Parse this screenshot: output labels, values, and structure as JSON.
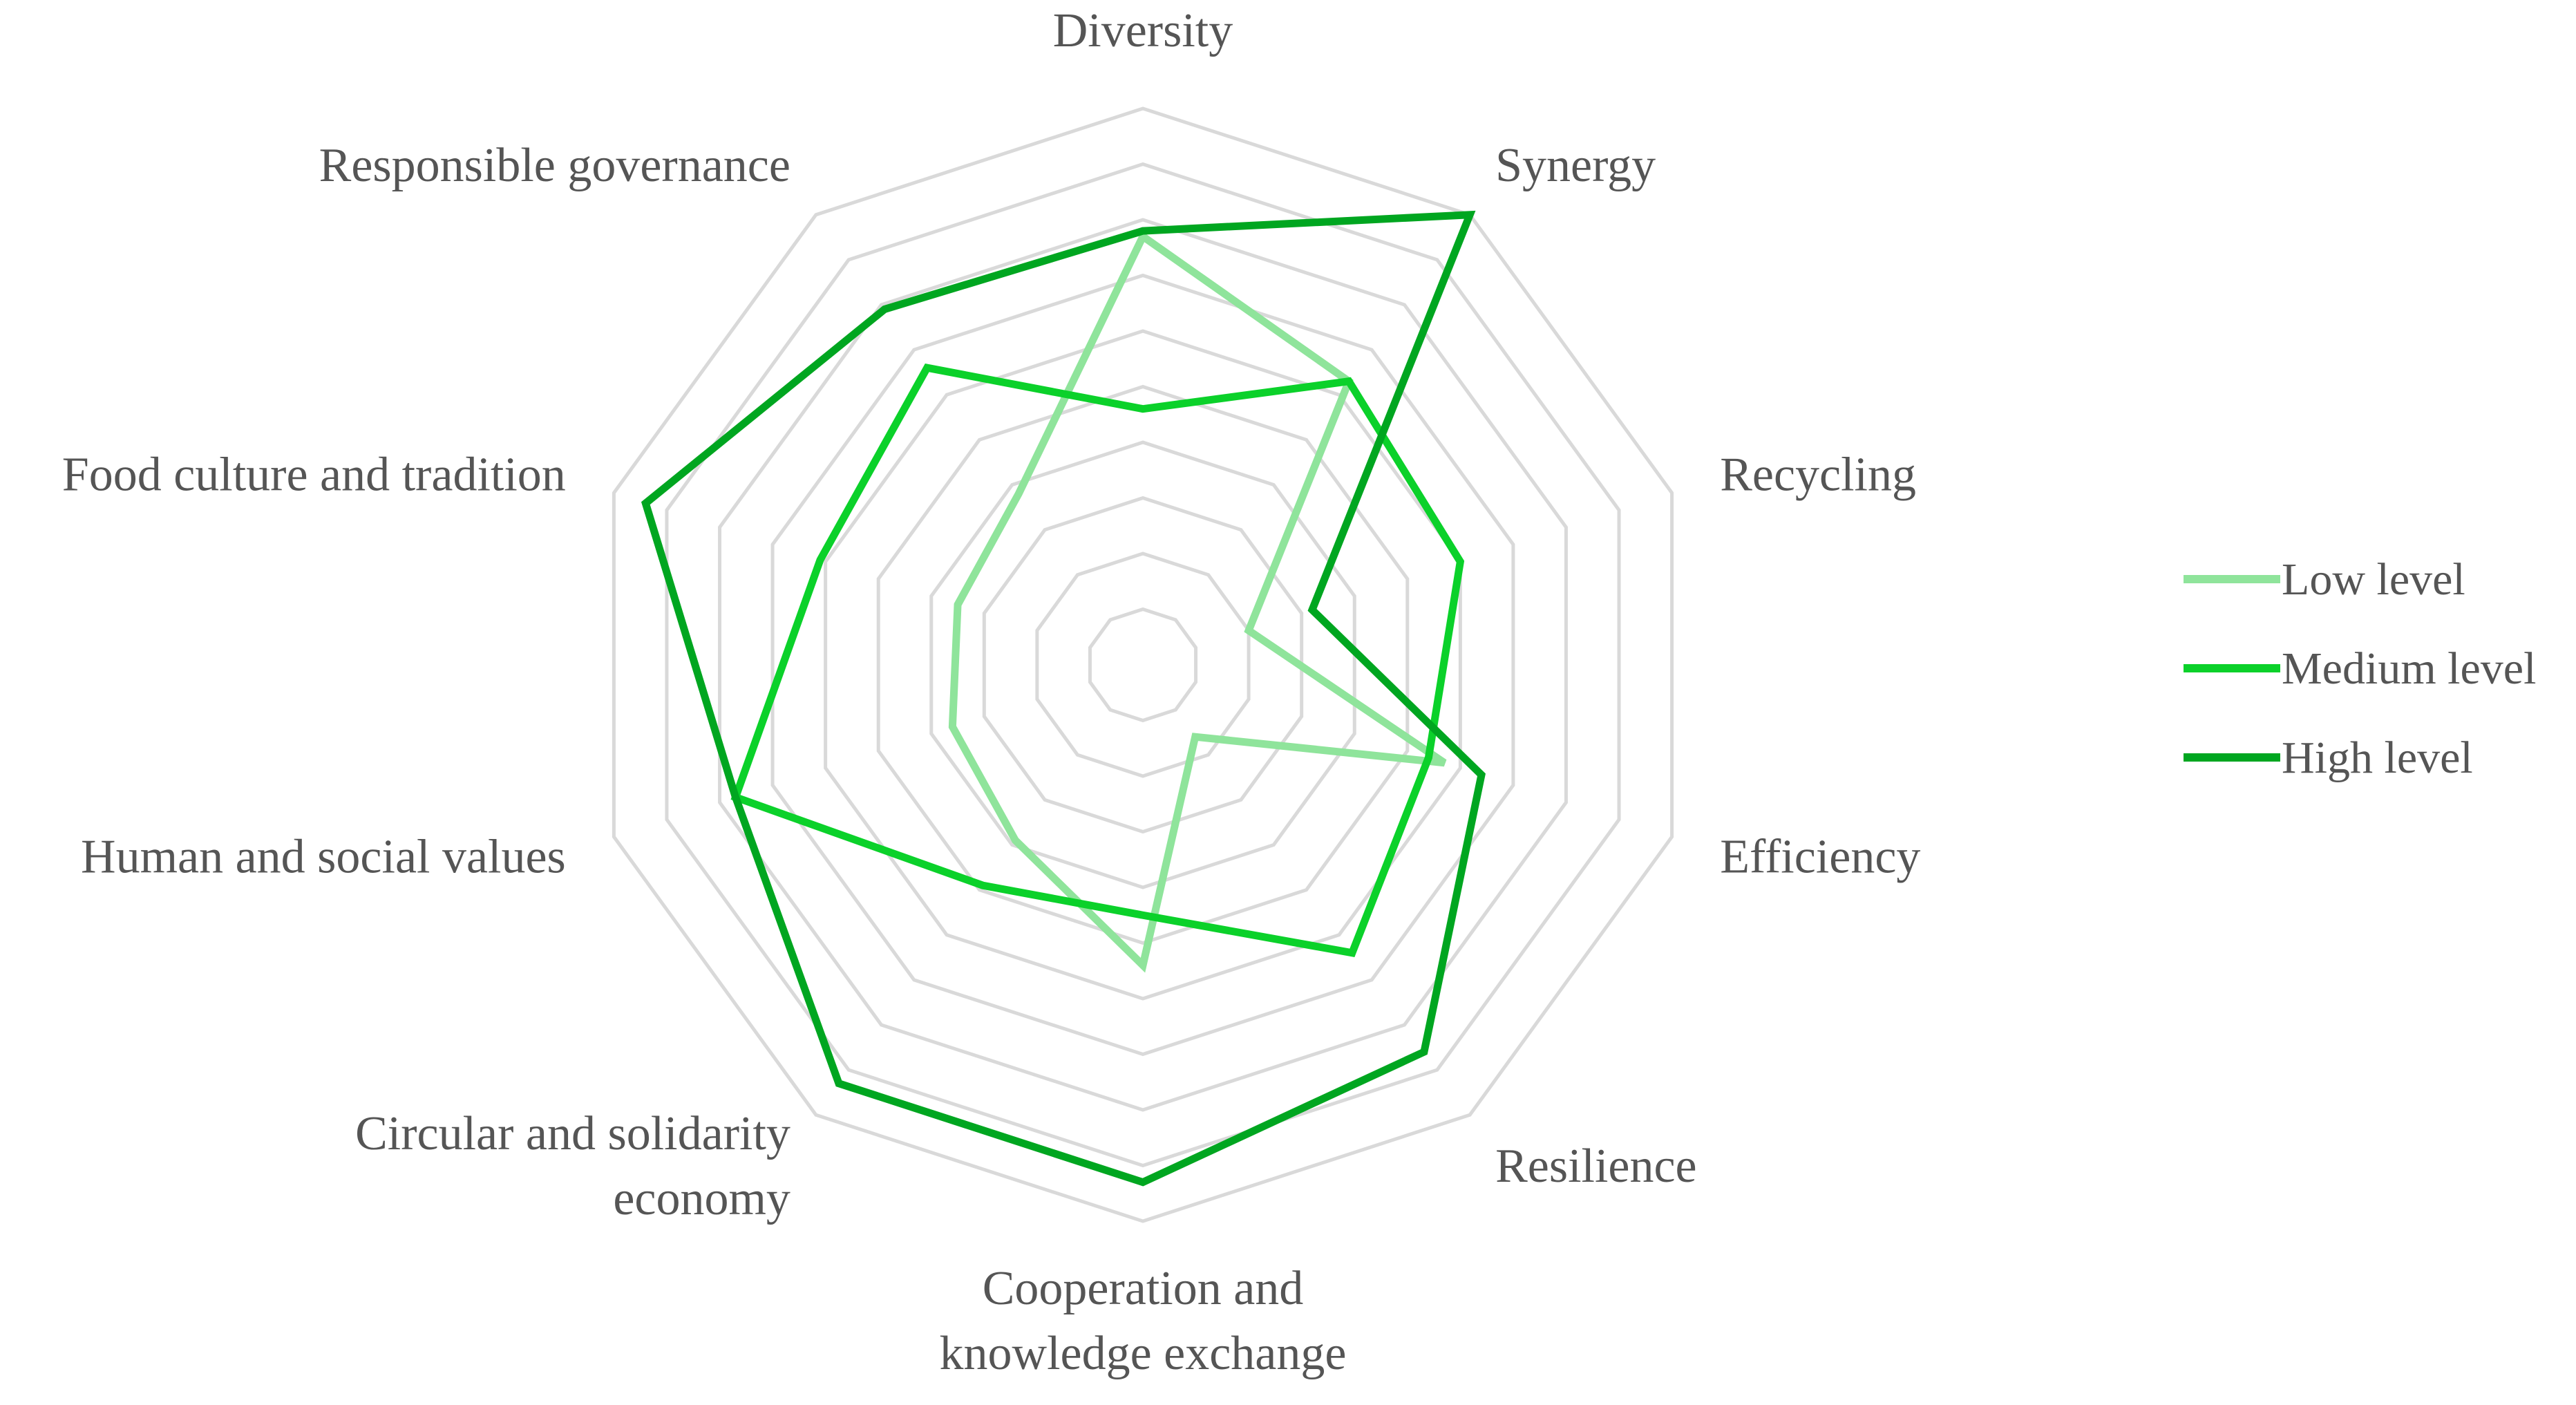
{
  "chart_data": {
    "type": "radar",
    "title": "",
    "axes": [
      "Diversity",
      "Synergy",
      "Recycling",
      "Efficiency",
      "Resilience",
      "Cooperation and knowledge exchange",
      "Circular and solidarity economy",
      "Human and social values",
      "Food culture and tradition",
      "Responsible governance"
    ],
    "axis_label_lines": [
      [
        "Diversity"
      ],
      [
        "Synergy"
      ],
      [
        "Recycling"
      ],
      [
        "Efficiency"
      ],
      [
        "Resilience"
      ],
      [
        "Cooperation and",
        "knowledge exchange"
      ],
      [
        "Circular and solidarity",
        "economy"
      ],
      [
        "Human and social values"
      ],
      [
        "Food culture and tradition"
      ],
      [
        "Responsible governance"
      ]
    ],
    "range": [
      0,
      10
    ],
    "grid_rings": 10,
    "grid": true,
    "legend_position": "right",
    "series": [
      {
        "name": "Low level",
        "color": "#8fe49b",
        "values": [
          7.7,
          6.3,
          2.0,
          5.7,
          1.6,
          5.4,
          3.9,
          3.6,
          3.5,
          3.8
        ]
      },
      {
        "name": "Medium level",
        "color": "#0bd12a",
        "values": [
          4.6,
          6.3,
          6.0,
          5.4,
          6.4,
          4.5,
          4.9,
          7.7,
          6.1,
          6.6
        ]
      },
      {
        "name": "High level",
        "color": "#00a620",
        "values": [
          7.8,
          10.0,
          3.2,
          6.4,
          8.6,
          9.3,
          9.3,
          7.7,
          9.4,
          7.9
        ]
      }
    ]
  }
}
